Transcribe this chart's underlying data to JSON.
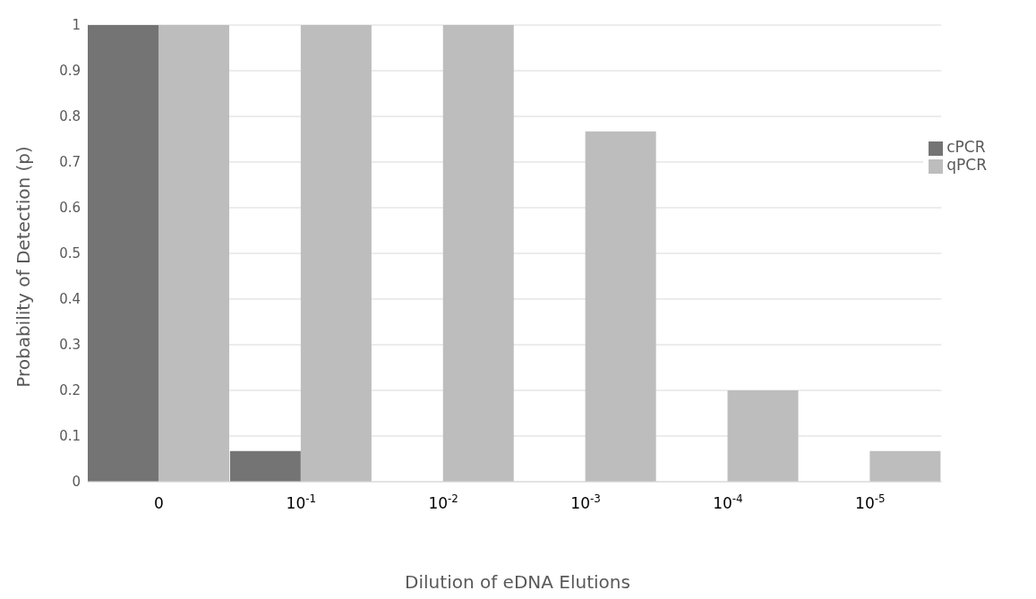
{
  "chart_data": {
    "type": "bar",
    "xlabel": "Dilution of eDNA Elutions",
    "ylabel": "Probability of Detection (p)",
    "categories": [
      "0",
      "10$^{-1}$",
      "10$^{-2}$",
      "10$^{-3}$",
      "10$^{-4}$",
      "10$^{-5}$"
    ],
    "series": [
      {
        "name": "cPCR",
        "color": "#747474",
        "values": [
          1,
          0.067,
          0,
          0,
          0,
          0
        ]
      },
      {
        "name": "qPCR",
        "color": "#bdbdbd",
        "values": [
          1,
          1,
          1,
          0.767,
          0.2,
          0.067
        ]
      }
    ],
    "ylim": [
      0,
      1
    ],
    "yticks": [
      0,
      0.1,
      0.2,
      0.3,
      0.4,
      0.5,
      0.6,
      0.7,
      0.8,
      0.9,
      1
    ],
    "grid": "y",
    "legend": "right"
  }
}
